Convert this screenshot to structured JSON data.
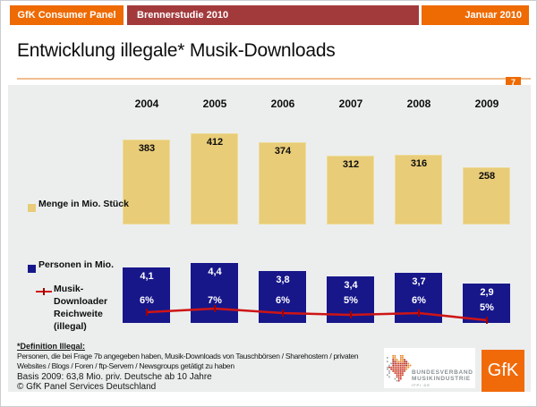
{
  "header": {
    "left": "GfK Consumer Panel",
    "center": "Brennerstudie 2010",
    "right": "Januar 2010"
  },
  "title": "Entwicklung illegale* Musik-Downloads",
  "page_number": "7",
  "chart_data": {
    "type": "bar",
    "categories": [
      "2004",
      "2005",
      "2006",
      "2007",
      "2008",
      "2009"
    ],
    "series": [
      {
        "name": "Menge in Mio. Stück",
        "type": "bar",
        "values": [
          383,
          412,
          374,
          312,
          316,
          258
        ],
        "labels": [
          "383",
          "412",
          "374",
          "312",
          "316",
          "258"
        ],
        "color": "#e8cc78"
      },
      {
        "name": "Personen in Mio.",
        "type": "bar",
        "values": [
          4.1,
          4.4,
          3.8,
          3.4,
          3.7,
          2.9
        ],
        "labels": [
          "4,1",
          "4,4",
          "3,8",
          "3,4",
          "3,7",
          "2,9"
        ],
        "color": "#17178a"
      },
      {
        "name": "Musik-Downloader Reichweite (illegal)",
        "type": "line",
        "values": [
          6,
          7,
          6,
          5,
          6,
          5
        ],
        "labels": [
          "6%",
          "7%",
          "6%",
          "5%",
          "6%",
          "5%"
        ],
        "color": "#ce1515"
      }
    ],
    "grid": false,
    "legend_position": "left"
  },
  "legend": {
    "menge": "Menge in Mio. Stück",
    "personen": "Personen in Mio.",
    "reichweite_lines": [
      "Musik-",
      "Downloader",
      "Reichweite",
      "(illegal)"
    ]
  },
  "footnote": {
    "definition_title": "*Definition Illegal:",
    "definition_line1": "Personen, die bei Frage 7b angegeben haben, Musik-Downloads von Tauschbörsen / Sharehostern / privaten",
    "definition_line2": "Websites / Blogs / Foren / ftp-Servern / Newsgroups getätigt zu haben",
    "basis": "Basis 2009: 63,8 Mio. priv. Deutsche ab 10 Jahre",
    "copyright": "© GfK Panel Services Deutschland"
  },
  "logos": {
    "bvmi_line1": "BUNDESVERBAND",
    "bvmi_line2": "MUSIKINDUSTRIE",
    "bvmi_line3": "IFPI.DE",
    "gfk": "GfK"
  },
  "colors": {
    "orange": "#ee6a02",
    "header_red": "#a23a3c",
    "divider_peach": "#f0be8e",
    "panel_gray": "#eceeee",
    "bar_tan": "#e8cc78",
    "bar_navy": "#17178a",
    "line_red": "#ce1515"
  }
}
